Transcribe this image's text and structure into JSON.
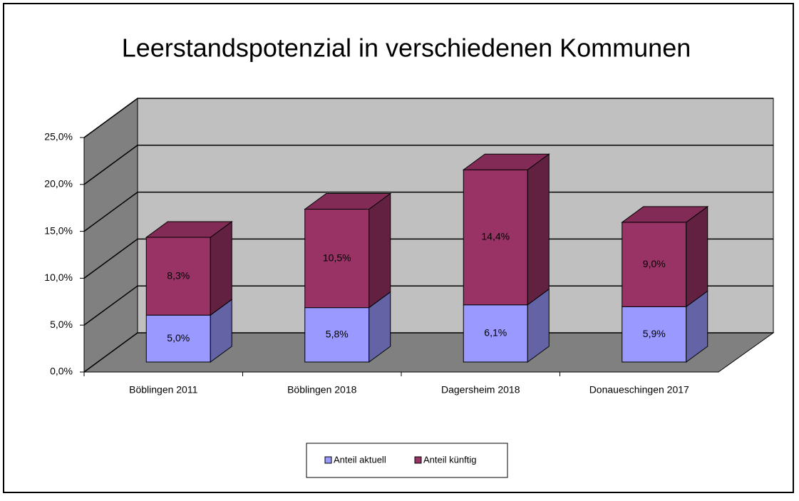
{
  "chart_data": {
    "type": "bar",
    "stacked": true,
    "title": "Leerstandspotenzial in verschiedenen Kommunen",
    "categories": [
      "Böblingen 2011",
      "Böblingen 2018",
      "Dagersheim 2018",
      "Donaueschingen 2017"
    ],
    "series": [
      {
        "name": "Anteil aktuell",
        "color": "#9999ff",
        "values": [
          5.0,
          5.8,
          6.1,
          5.9
        ],
        "value_labels": [
          "5,0%",
          "5,8%",
          "6,1%",
          "5,9%"
        ]
      },
      {
        "name": "Anteil künftig",
        "color": "#993366",
        "values": [
          8.3,
          10.5,
          14.4,
          9.0
        ],
        "value_labels": [
          "8,3%",
          "10,5%",
          "14,4%",
          "9,0%"
        ]
      }
    ],
    "ylim": [
      0,
      25
    ],
    "yticks": [
      {
        "value": 0,
        "label": "0,0%"
      },
      {
        "value": 5,
        "label": "5,0%"
      },
      {
        "value": 10,
        "label": "10,0%"
      },
      {
        "value": 15,
        "label": "15,0%"
      },
      {
        "value": 20,
        "label": "20,0%"
      },
      {
        "value": 25,
        "label": "25,0%"
      }
    ],
    "grid": true
  }
}
